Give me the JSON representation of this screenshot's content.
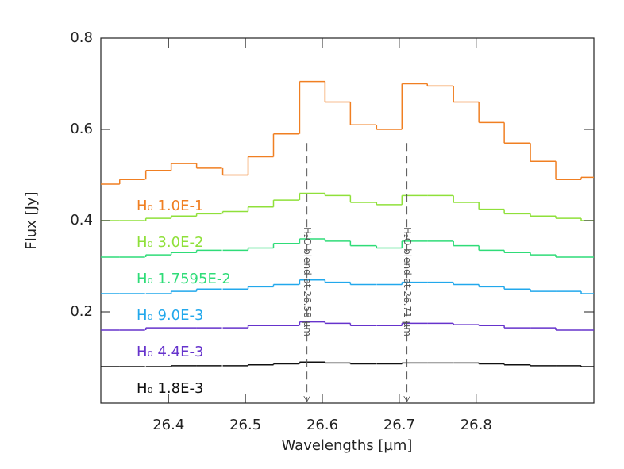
{
  "chart_data": {
    "type": "step",
    "xlabel": "Wavelengths [µm]",
    "ylabel": "Flux [Jy]",
    "xlim": [
      26.312,
      26.953
    ],
    "ylim": [
      0,
      0.8
    ],
    "xticks": [
      26.4,
      26.5,
      26.6,
      26.7,
      26.8
    ],
    "yticks": [
      0.2,
      0.4,
      0.6,
      0.8
    ],
    "x": [
      26.32,
      26.353,
      26.387,
      26.42,
      26.453,
      26.487,
      26.52,
      26.553,
      26.587,
      26.62,
      26.653,
      26.687,
      26.72,
      26.753,
      26.787,
      26.82,
      26.853,
      26.887,
      26.92,
      26.953
    ],
    "series": [
      {
        "name": "H₀ 1.0E-1",
        "color": "#f07f22",
        "values": [
          0.48,
          0.49,
          0.51,
          0.525,
          0.515,
          0.5,
          0.54,
          0.59,
          0.705,
          0.66,
          0.61,
          0.6,
          0.7,
          0.695,
          0.66,
          0.615,
          0.57,
          0.53,
          0.49,
          0.495
        ]
      },
      {
        "name": "H₀ 3.0E-2",
        "color": "#8fe03a",
        "values": [
          0.4,
          0.4,
          0.405,
          0.41,
          0.415,
          0.42,
          0.43,
          0.445,
          0.46,
          0.455,
          0.44,
          0.435,
          0.455,
          0.455,
          0.44,
          0.425,
          0.415,
          0.41,
          0.405,
          0.4
        ]
      },
      {
        "name": "H₀ 1.7595E-2",
        "color": "#2fdc78",
        "values": [
          0.32,
          0.32,
          0.325,
          0.33,
          0.335,
          0.335,
          0.34,
          0.35,
          0.36,
          0.355,
          0.345,
          0.34,
          0.355,
          0.355,
          0.345,
          0.335,
          0.33,
          0.325,
          0.32,
          0.32
        ]
      },
      {
        "name": "H₀ 9.0E-3",
        "color": "#22a8ec",
        "values": [
          0.24,
          0.24,
          0.24,
          0.245,
          0.25,
          0.25,
          0.255,
          0.26,
          0.27,
          0.265,
          0.26,
          0.26,
          0.265,
          0.265,
          0.26,
          0.255,
          0.25,
          0.245,
          0.245,
          0.24
        ]
      },
      {
        "name": "H₀ 4.4E-3",
        "color": "#6633cc",
        "values": [
          0.16,
          0.16,
          0.165,
          0.165,
          0.165,
          0.165,
          0.17,
          0.17,
          0.178,
          0.175,
          0.17,
          0.17,
          0.175,
          0.175,
          0.172,
          0.17,
          0.165,
          0.165,
          0.16,
          0.16
        ]
      },
      {
        "name": "H₀ 1.8E-3",
        "color": "#111111",
        "values": [
          0.08,
          0.08,
          0.08,
          0.082,
          0.082,
          0.082,
          0.084,
          0.086,
          0.09,
          0.088,
          0.086,
          0.086,
          0.088,
          0.088,
          0.088,
          0.086,
          0.084,
          0.082,
          0.082,
          0.08
        ]
      }
    ],
    "annotations": [
      {
        "text": "H₂O blend at 26.58 µm",
        "x": 26.58,
        "y": 0.57
      },
      {
        "text": "H₂O blend at 26.71 µm",
        "x": 26.71,
        "y": 0.57
      }
    ]
  }
}
